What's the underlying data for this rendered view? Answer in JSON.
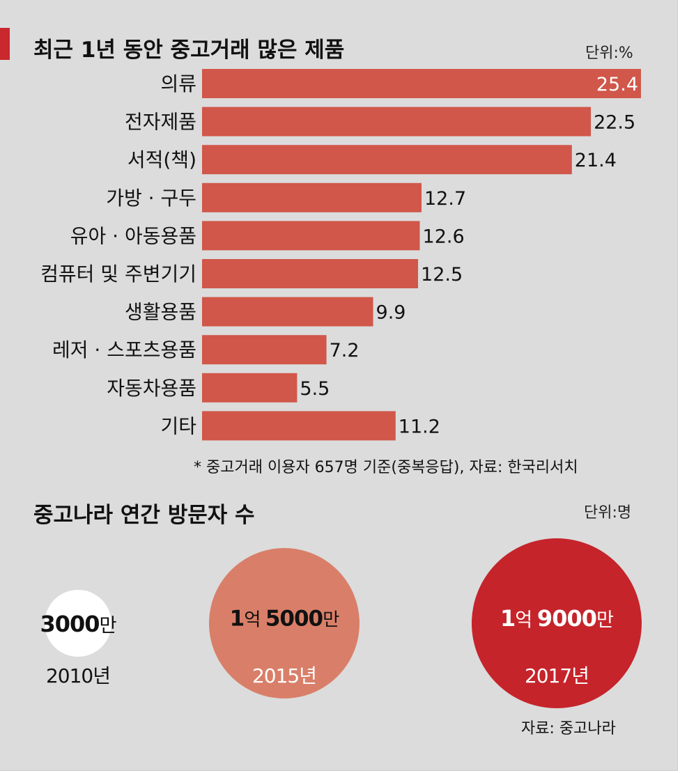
{
  "section1": {
    "title": "최근 1년 동안 중고거래 많은 제품",
    "unit": "단위:%",
    "footnote": "* 중고거래 이용자 657명 기준(중복응답), 자료: 한국리서치"
  },
  "chart_data": [
    {
      "type": "bar",
      "orientation": "horizontal",
      "title": "최근 1년 동안 중고거래 많은 제품",
      "unit": "%",
      "categories": [
        "의류",
        "전자제품",
        "서적(책)",
        "가방 · 구두",
        "유아 · 아동용품",
        "컴퓨터 및 주변기기",
        "생활용품",
        "레저 · 스포츠용품",
        "자동차용품",
        "기타"
      ],
      "values": [
        25.4,
        22.5,
        21.4,
        12.7,
        12.6,
        12.5,
        9.9,
        7.2,
        5.5,
        11.2
      ],
      "value_labels": [
        "25.4",
        "22.5",
        "21.4",
        "12.7",
        "12.6",
        "12.5",
        "9.9",
        "7.2",
        "5.5",
        "11.2"
      ],
      "xlim": [
        0,
        25.4
      ],
      "bar_color": "#d0574a"
    },
    {
      "type": "bubble",
      "title": "중고나라 연간 방문자 수",
      "unit": "명",
      "categories": [
        "2010년",
        "2015년",
        "2017년"
      ],
      "values": [
        30000000,
        150000000,
        190000000
      ],
      "value_labels": [
        {
          "num": "3000",
          "suffix": "만"
        },
        {
          "num": "1",
          "mid": "억 ",
          "num2": "5000",
          "suffix": "만"
        },
        {
          "num": "1",
          "mid": "억 ",
          "num2": "9000",
          "suffix": "만"
        }
      ],
      "colors": [
        "#ffffff",
        "#d97f69",
        "#c5242b"
      ]
    }
  ],
  "section2": {
    "title": "중고나라 연간 방문자 수",
    "unit": "단위:명",
    "source": "자료: 중고나라"
  },
  "colors": {
    "background": "#dcdcdc",
    "accent": "#c8282e",
    "bar": "#d0574a"
  }
}
